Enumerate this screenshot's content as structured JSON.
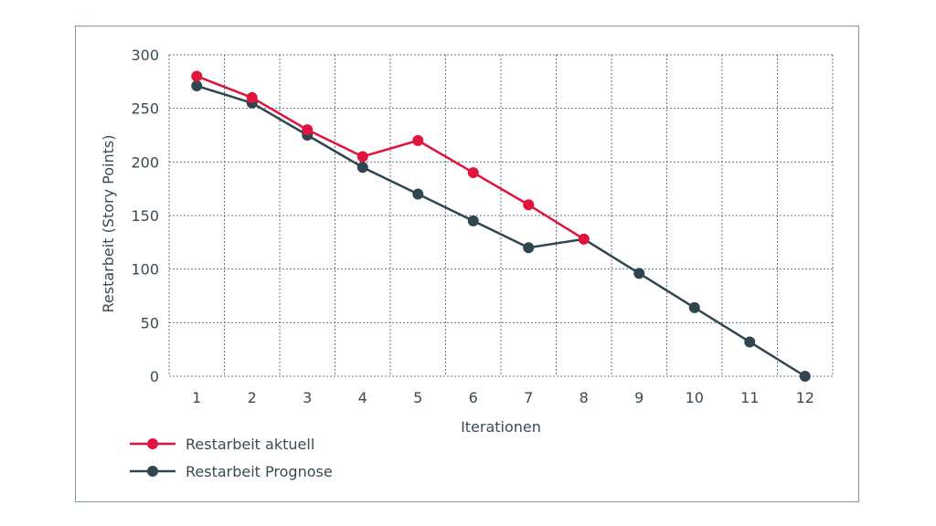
{
  "chart_data": {
    "type": "line",
    "xlabel": "Iterationen",
    "ylabel": "Restarbeit (Story Points)",
    "x": [
      1,
      2,
      3,
      4,
      5,
      6,
      7,
      8,
      9,
      10,
      11,
      12
    ],
    "xlim": [
      0.5,
      12.5
    ],
    "ylim": [
      0,
      300
    ],
    "yticks": [
      0,
      50,
      100,
      150,
      200,
      250,
      300
    ],
    "grid": true,
    "legend_position": "bottom-left",
    "series": [
      {
        "name": "Restarbeit aktuell",
        "color": "#e0143c",
        "x": [
          1,
          2,
          3,
          4,
          5,
          6,
          7,
          8
        ],
        "values": [
          280,
          260,
          230,
          205,
          220,
          190,
          160,
          128
        ]
      },
      {
        "name": "Restarbeit Prognose",
        "color": "#2f4650",
        "x": [
          1,
          2,
          3,
          4,
          5,
          6,
          7,
          8,
          9,
          10,
          11,
          12
        ],
        "values": [
          271,
          255,
          225,
          195,
          170,
          145,
          120,
          128,
          96,
          64,
          32,
          0
        ]
      }
    ]
  },
  "colors": {
    "grid": "#5e7480",
    "frame": "#7f9aa5",
    "text": "#3a4a52"
  }
}
